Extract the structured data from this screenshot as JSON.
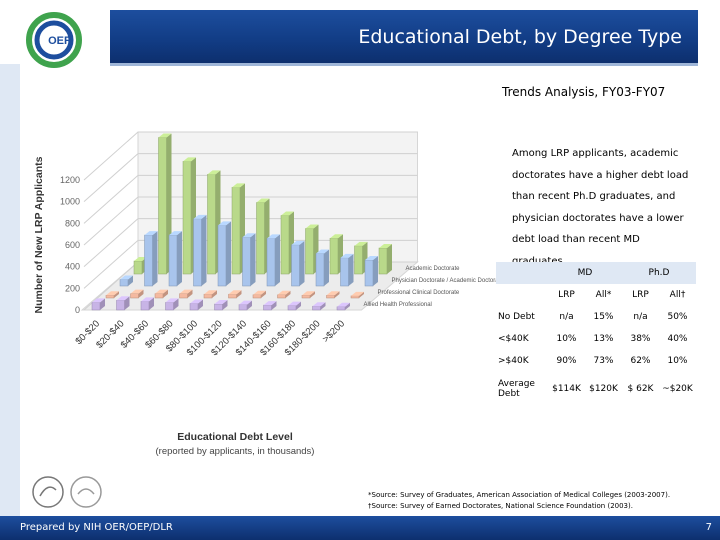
{
  "header": {
    "title": "Educational Debt, by Degree Type"
  },
  "logo": {
    "text": "OER"
  },
  "subtitle": "Trends Analysis, FY03-FY07",
  "callout": "Among LRP applicants, academic doctorates have a higher debt load than recent Ph.D graduates, and physician doctorates have a lower debt load than recent MD graduates.",
  "table": {
    "groups": [
      "MD",
      "Ph.D"
    ],
    "subheaders": [
      "LRP",
      "All*",
      "LRP",
      "All†"
    ],
    "rows": [
      {
        "label": "No Debt",
        "values": [
          "n/a",
          "15%",
          "n/a",
          "50%"
        ]
      },
      {
        "label": "<$40K",
        "values": [
          "10%",
          "13%",
          "38%",
          "40%"
        ]
      },
      {
        "label": ">$40K",
        "values": [
          "90%",
          "73%",
          "62%",
          "10%"
        ]
      },
      {
        "label": "Average Debt",
        "values": [
          "$114K",
          "$120K",
          "$ 62K",
          "~$20K"
        ]
      }
    ]
  },
  "sources": {
    "line1": "*Source: Survey of Graduates, American Association of Medical Colleges (2003-2007).",
    "line2": "†Source: Survey of Earned Doctorates, National Science Foundation (2003)."
  },
  "footer": {
    "text": "Prepared by NIH OER/OEP/DLR",
    "page": "7"
  },
  "colors": {
    "title_bar": "#123d86",
    "academic": "#b9d98a",
    "physician_academic": "#a8c4ec",
    "physician": "#f4b9a0",
    "allied": "#c8b4e6",
    "table_header": "#dfe8f4"
  },
  "chart_data": {
    "type": "bar",
    "three_d": true,
    "ylabel": "Number of New LRP Applicants",
    "xlabel": "Educational Debt Level",
    "xlabel_note": "(reported by applicants, in thousands)",
    "yticks": [
      0,
      200,
      400,
      600,
      800,
      1000,
      1200
    ],
    "ylim": [
      0,
      1200
    ],
    "categories": [
      "$0-$20",
      "$20-$40",
      "$40-$60",
      "$60-$80",
      "$80-$100",
      "$100-$120",
      "$120-$140",
      "$140-$160",
      "$160-$180",
      "$180-$200",
      ">$200"
    ],
    "series": [
      {
        "name": "Academic Doctorate",
        "color": "#b9d98a",
        "values": [
          120,
          1260,
          1040,
          920,
          800,
          660,
          540,
          420,
          330,
          260,
          240
        ]
      },
      {
        "name": "Physician Doctorate / Academic Doctorate",
        "color": "#a8c4ec",
        "values": [
          60,
          470,
          470,
          620,
          560,
          450,
          440,
          380,
          300,
          260,
          240
        ]
      },
      {
        "name": "Professional Clinical Doctorate",
        "color": "#f4b9a0",
        "values": [
          25,
          40,
          40,
          40,
          35,
          35,
          30,
          30,
          25,
          25,
          20
        ]
      },
      {
        "name": "Allied Health Professional",
        "color": "#c8b4e6",
        "values": [
          70,
          90,
          80,
          70,
          60,
          55,
          50,
          45,
          40,
          35,
          30
        ]
      }
    ],
    "series_order_back_to_front": [
      "Academic Doctorate",
      "Physician Doctorate / Academic Doctorate",
      "Professional Clinical Doctorate",
      "Allied Health Professional"
    ],
    "grid": true
  }
}
